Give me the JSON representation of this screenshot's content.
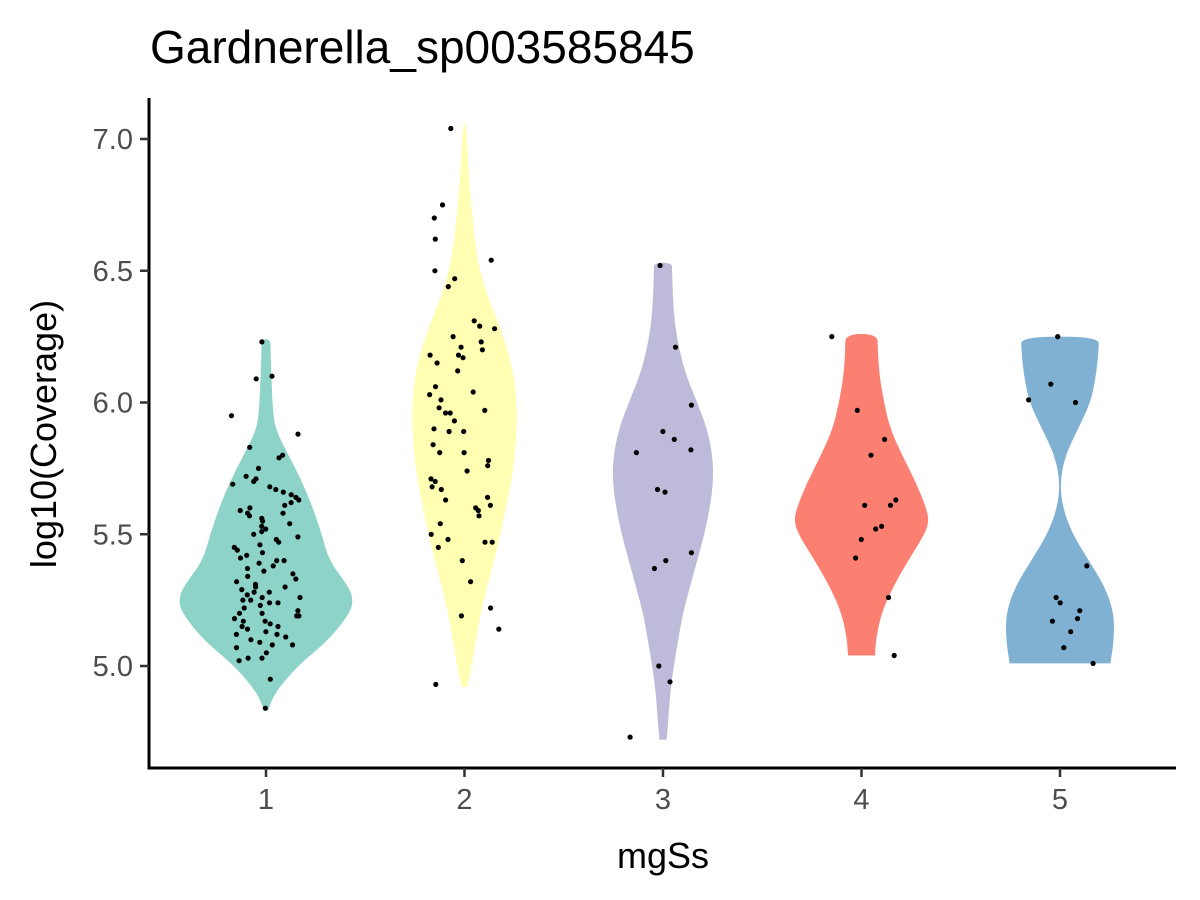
{
  "chart_data": {
    "type": "violin",
    "title": "Gardnerella_sp003585845",
    "xlabel": "mgSs",
    "ylabel": "log10(Coverage)",
    "categories": [
      "1",
      "2",
      "3",
      "4",
      "5"
    ],
    "y_ticks": [
      5.0,
      5.5,
      6.0,
      6.5,
      7.0
    ],
    "y_tick_labels": [
      "5.0",
      "5.5",
      "6.0",
      "6.5",
      "7.0"
    ],
    "ylim": [
      4.66,
      7.16
    ],
    "grid": false,
    "legend": "none",
    "series": [
      {
        "category": "1",
        "color": "#8DD3C7",
        "range": [
          4.83,
          6.24
        ],
        "density_profile": [
          [
            4.83,
            0.02
          ],
          [
            4.9,
            0.1
          ],
          [
            5.0,
            0.35
          ],
          [
            5.1,
            0.7
          ],
          [
            5.2,
            0.93
          ],
          [
            5.25,
            0.97
          ],
          [
            5.3,
            0.92
          ],
          [
            5.4,
            0.7
          ],
          [
            5.5,
            0.62
          ],
          [
            5.6,
            0.52
          ],
          [
            5.7,
            0.4
          ],
          [
            5.8,
            0.25
          ],
          [
            5.9,
            0.1
          ],
          [
            6.0,
            0.07
          ],
          [
            6.1,
            0.06
          ],
          [
            6.2,
            0.05
          ],
          [
            6.24,
            0.05
          ]
        ],
        "points": [
          4.84,
          4.95,
          5.02,
          5.03,
          5.03,
          5.05,
          5.07,
          5.08,
          5.08,
          5.09,
          5.1,
          5.11,
          5.12,
          5.12,
          5.13,
          5.14,
          5.15,
          5.15,
          5.16,
          5.17,
          5.17,
          5.18,
          5.19,
          5.19,
          5.2,
          5.2,
          5.21,
          5.22,
          5.23,
          5.24,
          5.24,
          5.25,
          5.25,
          5.26,
          5.26,
          5.27,
          5.28,
          5.28,
          5.29,
          5.3,
          5.3,
          5.31,
          5.32,
          5.33,
          5.34,
          5.35,
          5.36,
          5.37,
          5.38,
          5.39,
          5.4,
          5.4,
          5.41,
          5.42,
          5.43,
          5.44,
          5.45,
          5.46,
          5.47,
          5.48,
          5.49,
          5.5,
          5.51,
          5.52,
          5.53,
          5.54,
          5.55,
          5.56,
          5.57,
          5.58,
          5.58,
          5.59,
          5.6,
          5.61,
          5.62,
          5.63,
          5.64,
          5.65,
          5.66,
          5.67,
          5.68,
          5.69,
          5.7,
          5.71,
          5.72,
          5.75,
          5.79,
          5.8,
          5.83,
          5.88,
          5.95,
          6.09,
          6.1,
          6.23
        ]
      },
      {
        "category": "2",
        "color": "#FFFFB3",
        "range": [
          4.92,
          7.06
        ],
        "density_profile": [
          [
            4.92,
            0.03
          ],
          [
            5.0,
            0.08
          ],
          [
            5.1,
            0.13
          ],
          [
            5.2,
            0.18
          ],
          [
            5.3,
            0.25
          ],
          [
            5.4,
            0.33
          ],
          [
            5.5,
            0.4
          ],
          [
            5.6,
            0.46
          ],
          [
            5.7,
            0.52
          ],
          [
            5.8,
            0.56
          ],
          [
            5.9,
            0.58
          ],
          [
            6.0,
            0.58
          ],
          [
            6.1,
            0.55
          ],
          [
            6.2,
            0.48
          ],
          [
            6.3,
            0.38
          ],
          [
            6.4,
            0.26
          ],
          [
            6.5,
            0.17
          ],
          [
            6.6,
            0.12
          ],
          [
            6.7,
            0.09
          ],
          [
            6.8,
            0.06
          ],
          [
            6.9,
            0.04
          ],
          [
            7.0,
            0.03
          ],
          [
            7.06,
            0.01
          ]
        ],
        "points": [
          4.93,
          5.14,
          5.19,
          5.22,
          5.32,
          5.4,
          5.45,
          5.47,
          5.47,
          5.48,
          5.5,
          5.54,
          5.57,
          5.59,
          5.6,
          5.61,
          5.63,
          5.64,
          5.67,
          5.68,
          5.7,
          5.71,
          5.74,
          5.76,
          5.78,
          5.81,
          5.81,
          5.84,
          5.89,
          5.89,
          5.9,
          5.93,
          5.96,
          5.96,
          5.97,
          5.98,
          6.01,
          6.03,
          6.04,
          6.06,
          6.12,
          6.15,
          6.17,
          6.18,
          6.18,
          6.2,
          6.21,
          6.23,
          6.25,
          6.28,
          6.29,
          6.31,
          6.44,
          6.47,
          6.5,
          6.54,
          6.62,
          6.7,
          6.75,
          7.04
        ]
      },
      {
        "category": "3",
        "color": "#BEBADA",
        "range": [
          4.72,
          6.53
        ],
        "density_profile": [
          [
            4.72,
            0.04
          ],
          [
            4.8,
            0.06
          ],
          [
            4.9,
            0.08
          ],
          [
            5.0,
            0.12
          ],
          [
            5.1,
            0.17
          ],
          [
            5.2,
            0.22
          ],
          [
            5.3,
            0.3
          ],
          [
            5.4,
            0.38
          ],
          [
            5.5,
            0.46
          ],
          [
            5.6,
            0.52
          ],
          [
            5.7,
            0.56
          ],
          [
            5.8,
            0.55
          ],
          [
            5.9,
            0.49
          ],
          [
            6.0,
            0.38
          ],
          [
            6.1,
            0.26
          ],
          [
            6.2,
            0.18
          ],
          [
            6.3,
            0.13
          ],
          [
            6.4,
            0.11
          ],
          [
            6.5,
            0.1
          ],
          [
            6.53,
            0.1
          ]
        ],
        "points": [
          4.73,
          4.94,
          5.0,
          5.37,
          5.4,
          5.43,
          5.66,
          5.67,
          5.81,
          5.82,
          5.86,
          5.89,
          5.99,
          6.21,
          6.52
        ]
      },
      {
        "category": "4",
        "color": "#FB8072",
        "range": [
          5.04,
          6.26
        ],
        "density_profile": [
          [
            5.04,
            0.15
          ],
          [
            5.1,
            0.16
          ],
          [
            5.2,
            0.22
          ],
          [
            5.3,
            0.35
          ],
          [
            5.4,
            0.52
          ],
          [
            5.5,
            0.7
          ],
          [
            5.55,
            0.75
          ],
          [
            5.6,
            0.72
          ],
          [
            5.7,
            0.6
          ],
          [
            5.8,
            0.45
          ],
          [
            5.9,
            0.32
          ],
          [
            6.0,
            0.25
          ],
          [
            6.1,
            0.2
          ],
          [
            6.2,
            0.18
          ],
          [
            6.26,
            0.18
          ]
        ],
        "points": [
          5.04,
          5.26,
          5.41,
          5.48,
          5.52,
          5.53,
          5.61,
          5.61,
          5.63,
          5.8,
          5.86,
          5.97,
          6.25
        ]
      },
      {
        "category": "5",
        "color": "#80B1D3",
        "range": [
          5.01,
          6.25
        ],
        "density_profile": [
          [
            5.01,
            0.56
          ],
          [
            5.1,
            0.6
          ],
          [
            5.2,
            0.6
          ],
          [
            5.3,
            0.5
          ],
          [
            5.4,
            0.32
          ],
          [
            5.5,
            0.14
          ],
          [
            5.6,
            0.03
          ],
          [
            5.7,
            0.0
          ],
          [
            5.8,
            0.06
          ],
          [
            5.9,
            0.2
          ],
          [
            6.0,
            0.34
          ],
          [
            6.1,
            0.4
          ],
          [
            6.2,
            0.43
          ],
          [
            6.25,
            0.43
          ]
        ],
        "points": [
          5.01,
          5.07,
          5.13,
          5.17,
          5.18,
          5.21,
          5.24,
          5.26,
          5.38,
          6.0,
          6.01,
          6.07,
          6.25
        ]
      }
    ]
  }
}
